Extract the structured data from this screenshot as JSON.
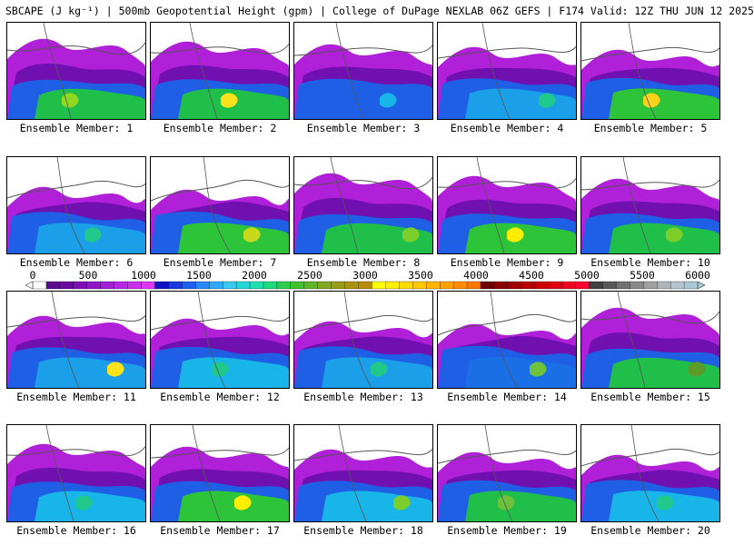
{
  "title": "SBCAPE (J kg⁻¹) | 500mb Geopotential Height (gpm) | College of DuPage NEXLAB 06Z GEFS | F174 Valid: 12Z THU JUN 12 2025",
  "panels": [
    {
      "label": "Ensemble Member: 1",
      "core": "#1fbf4a",
      "max": "#8fd81f"
    },
    {
      "label": "Ensemble Member: 2",
      "core": "#1fbf4a",
      "max": "#ffe21a"
    },
    {
      "label": "Ensemble Member: 3",
      "core": "#1e5fe6",
      "max": "#18b6e8"
    },
    {
      "label": "Ensemble Member: 4",
      "core": "#1b9fe8",
      "max": "#20c98a"
    },
    {
      "label": "Ensemble Member: 5",
      "core": "#2ec43a",
      "max": "#ffd21a"
    },
    {
      "label": "Ensemble Member: 6",
      "core": "#1b9fe8",
      "max": "#20c98a"
    },
    {
      "label": "Ensemble Member: 7",
      "core": "#2ec43a",
      "max": "#c8d81a"
    },
    {
      "label": "Ensemble Member: 8",
      "core": "#1fbf4a",
      "max": "#7ccf2a"
    },
    {
      "label": "Ensemble Member: 9",
      "core": "#2ec43a",
      "max": "#ffee00"
    },
    {
      "label": "Ensemble Member: 10",
      "core": "#1fbf4a",
      "max": "#7ccf2a"
    },
    {
      "label": "Ensemble Member: 11",
      "core": "#1b9fe8",
      "max": "#ffe21a"
    },
    {
      "label": "Ensemble Member: 12",
      "core": "#18b6e8",
      "max": "#20c98a"
    },
    {
      "label": "Ensemble Member: 13",
      "core": "#1b9fe8",
      "max": "#20c98a"
    },
    {
      "label": "Ensemble Member: 14",
      "core": "#1b6fe6",
      "max": "#6cc23a"
    },
    {
      "label": "Ensemble Member: 15",
      "core": "#1fbf4a",
      "max": "#5c9a2a"
    },
    {
      "label": "Ensemble Member: 16",
      "core": "#18b6e8",
      "max": "#20c98a"
    },
    {
      "label": "Ensemble Member: 17",
      "core": "#2ec43a",
      "max": "#ffee00"
    },
    {
      "label": "Ensemble Member: 18",
      "core": "#18b6e8",
      "max": "#7ccf2a"
    },
    {
      "label": "Ensemble Member: 19",
      "core": "#1fbf4a",
      "max": "#6cc23a"
    },
    {
      "label": "Ensemble Member: 20",
      "core": "#18b6e8",
      "max": "#20c98a"
    }
  ],
  "colorbar": {
    "ticks": [
      "0",
      "500",
      "1000",
      "1500",
      "2000",
      "2500",
      "3000",
      "3500",
      "4000",
      "4500",
      "5000",
      "5500",
      "6000"
    ],
    "colors": [
      "#ffffff",
      "#5a0a8a",
      "#6a0aa0",
      "#7c10b4",
      "#8e18c8",
      "#a020d8",
      "#b428e4",
      "#c830ec",
      "#dc38f0",
      "#1010c8",
      "#1838e0",
      "#2060f0",
      "#2888f8",
      "#30a8f8",
      "#38c8f0",
      "#20d8d8",
      "#20e0b0",
      "#20d880",
      "#30cc50",
      "#40c030",
      "#60b428",
      "#80a820",
      "#989c18",
      "#a89410",
      "#b88c08",
      "#ffff00",
      "#ffee00",
      "#ffdc00",
      "#ffc800",
      "#ffb400",
      "#ffa000",
      "#ff8c00",
      "#ff7800",
      "#6a0000",
      "#880000",
      "#a00000",
      "#b80000",
      "#d00000",
      "#e00010",
      "#f00020",
      "#ff0030",
      "#404040",
      "#585858",
      "#707070",
      "#888888",
      "#a0a0a0",
      "#b0b4b8",
      "#b8c4cc",
      "#a8c8d8"
    ]
  }
}
